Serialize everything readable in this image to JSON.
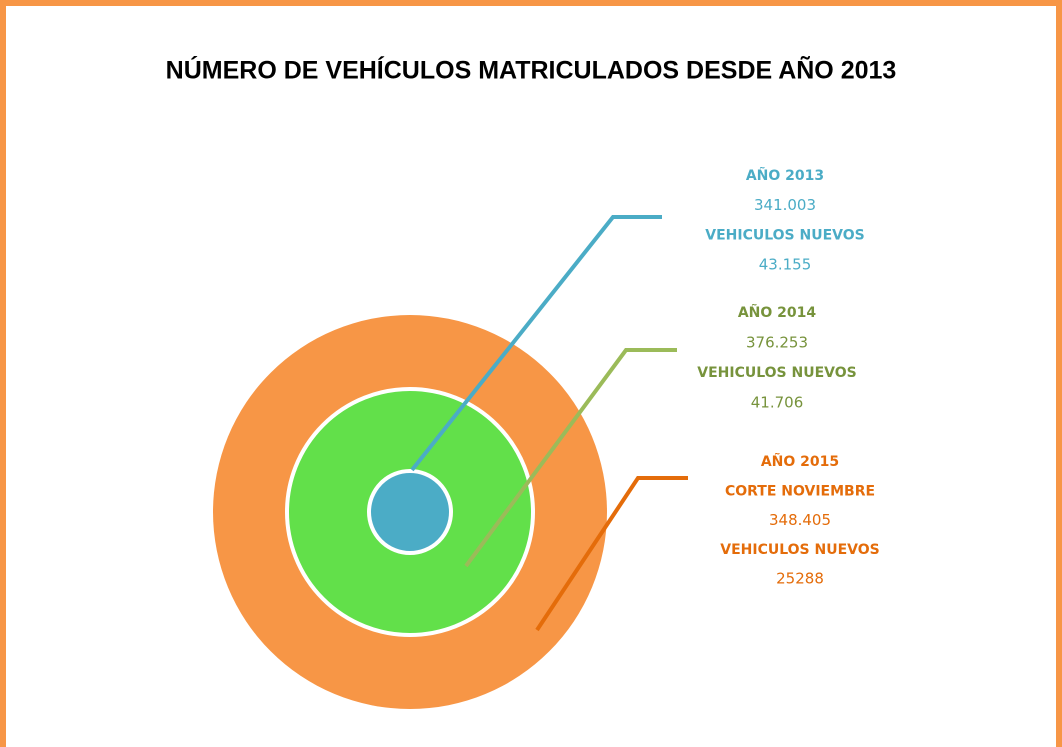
{
  "title": "NÚMERO DE VEHÍCULOS MATRICULADOS DESDE AÑO 2013",
  "groups": [
    {
      "lines": [
        "AÑO 2013",
        "341.003",
        "VEHICULOS NUEVOS",
        "43.155"
      ]
    },
    {
      "lines": [
        "AÑO 2014",
        "376.253",
        "VEHICULOS NUEVOS",
        "41.706"
      ]
    },
    {
      "lines": [
        "AÑO 2015",
        "CORTE NOVIEMBRE",
        "348.405",
        "VEHICULOS NUEVOS",
        "25288"
      ]
    }
  ]
}
